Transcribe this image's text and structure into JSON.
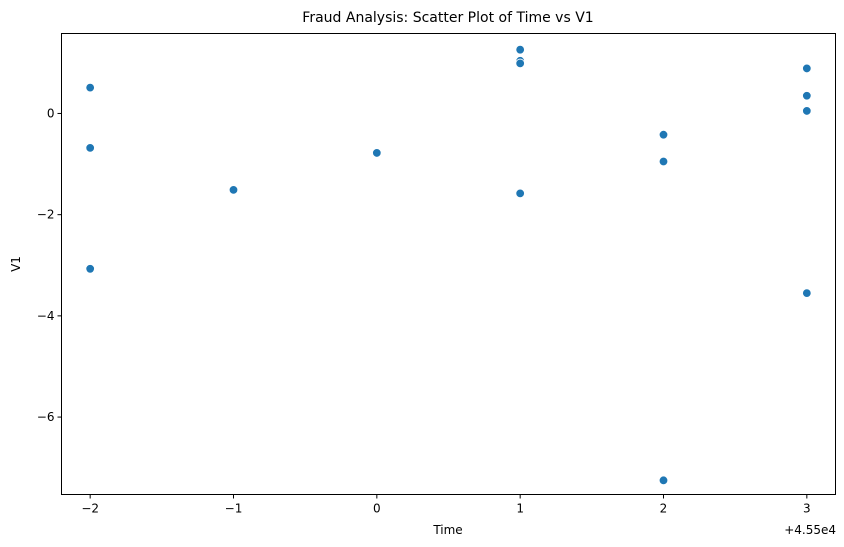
{
  "chart_data": {
    "type": "scatter",
    "title": "Fraud Analysis: Scatter Plot of Time vs V1",
    "xlabel": "Time",
    "ylabel": "V1",
    "x_offset_label": "+4.55e4",
    "x_offset": 45500,
    "xlim": [
      45497.8,
      45503.2
    ],
    "ylim": [
      -7.53,
      1.58
    ],
    "grid": false,
    "legend": "none",
    "point_color": "#1f77b4",
    "x_ticks": [
      {
        "value": 45498,
        "label": "−2"
      },
      {
        "value": 45499,
        "label": "−1"
      },
      {
        "value": 45500,
        "label": "0"
      },
      {
        "value": 45501,
        "label": "1"
      },
      {
        "value": 45502,
        "label": "2"
      },
      {
        "value": 45503,
        "label": "3"
      }
    ],
    "y_ticks": [
      {
        "value": -6,
        "label": "−6"
      },
      {
        "value": -4,
        "label": "−4"
      },
      {
        "value": -2,
        "label": "−2"
      },
      {
        "value": 0,
        "label": "0"
      }
    ],
    "points": [
      {
        "x": 45498,
        "y": 0.51
      },
      {
        "x": 45498,
        "y": -0.68
      },
      {
        "x": 45498,
        "y": -3.07
      },
      {
        "x": 45499,
        "y": -1.51
      },
      {
        "x": 45500,
        "y": -0.78
      },
      {
        "x": 45501,
        "y": 1.26
      },
      {
        "x": 45501,
        "y": 1.04
      },
      {
        "x": 45501,
        "y": 0.99
      },
      {
        "x": 45501,
        "y": -1.58
      },
      {
        "x": 45502,
        "y": -0.42
      },
      {
        "x": 45502,
        "y": -0.95
      },
      {
        "x": 45502,
        "y": -7.25
      },
      {
        "x": 45503,
        "y": 0.89
      },
      {
        "x": 45503,
        "y": 0.35
      },
      {
        "x": 45503,
        "y": 0.05
      },
      {
        "x": 45503,
        "y": -3.55
      }
    ]
  }
}
